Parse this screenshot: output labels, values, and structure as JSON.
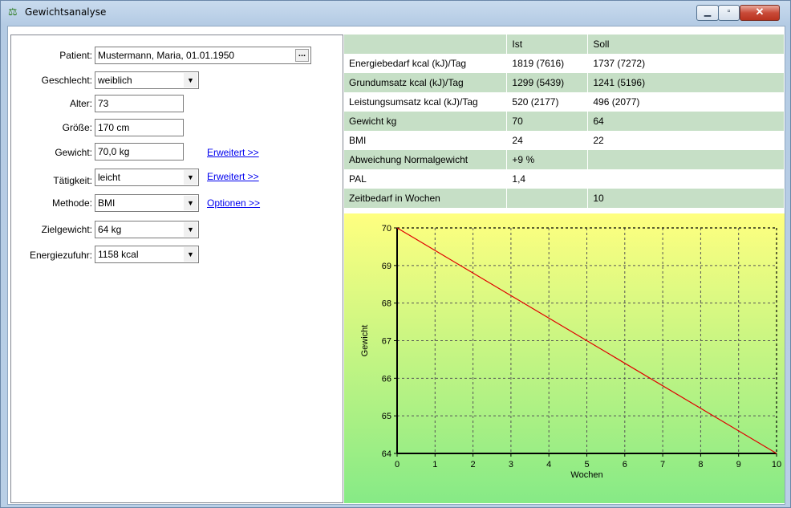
{
  "window": {
    "title": "Gewichtsanalyse",
    "icon": "scale-icon"
  },
  "form": {
    "patient_label": "Patient:",
    "patient_value": "Mustermann, Maria, 01.01.1950",
    "patient_button": "...",
    "gender_label": "Geschlecht:",
    "gender_value": "weiblich",
    "age_label": "Alter:",
    "age_value": "73",
    "height_label": "Größe:",
    "height_value": "170 cm",
    "weight_label": "Gewicht:",
    "weight_value": "70,0 kg",
    "weight_link": "Erweitert >>",
    "activity_label": "Tätigkeit:",
    "activity_value": "leicht",
    "activity_link": "Erweitert >>",
    "method_label": "Methode:",
    "method_value": "BMI",
    "method_link": "Optionen >>",
    "target_label": "Zielgewicht:",
    "target_value": "64 kg",
    "energy_label": "Energiezufuhr:",
    "energy_value": "1158 kcal"
  },
  "table": {
    "headers": [
      "",
      "Ist",
      "Soll"
    ],
    "rows": [
      [
        "Energiebedarf kcal (kJ)/Tag",
        "1819 (7616)",
        "1737 (7272)"
      ],
      [
        "Grundumsatz kcal (kJ)/Tag",
        "1299 (5439)",
        "1241 (5196)"
      ],
      [
        "Leistungsumsatz kcal (kJ)/Tag",
        "520 (2177)",
        "496 (2077)"
      ],
      [
        "Gewicht kg",
        "70",
        "64"
      ],
      [
        "BMI",
        "24",
        "22"
      ],
      [
        "Abweichung Normalgewicht",
        "+9 %",
        ""
      ],
      [
        "PAL",
        "1,4",
        ""
      ],
      [
        "Zeitbedarf in Wochen",
        "",
        "10"
      ]
    ]
  },
  "chart_data": {
    "type": "line",
    "title": "",
    "xlabel": "Wochen",
    "ylabel": "Gewicht",
    "xlim": [
      0,
      10
    ],
    "ylim": [
      64,
      70
    ],
    "x_ticks": [
      0,
      1,
      2,
      3,
      4,
      5,
      6,
      7,
      8,
      9,
      10
    ],
    "y_ticks": [
      64,
      65,
      66,
      67,
      68,
      69,
      70
    ],
    "grid": true,
    "series": [
      {
        "name": "",
        "color": "#e00000",
        "x": [
          0,
          10
        ],
        "y": [
          70,
          64
        ]
      }
    ]
  }
}
